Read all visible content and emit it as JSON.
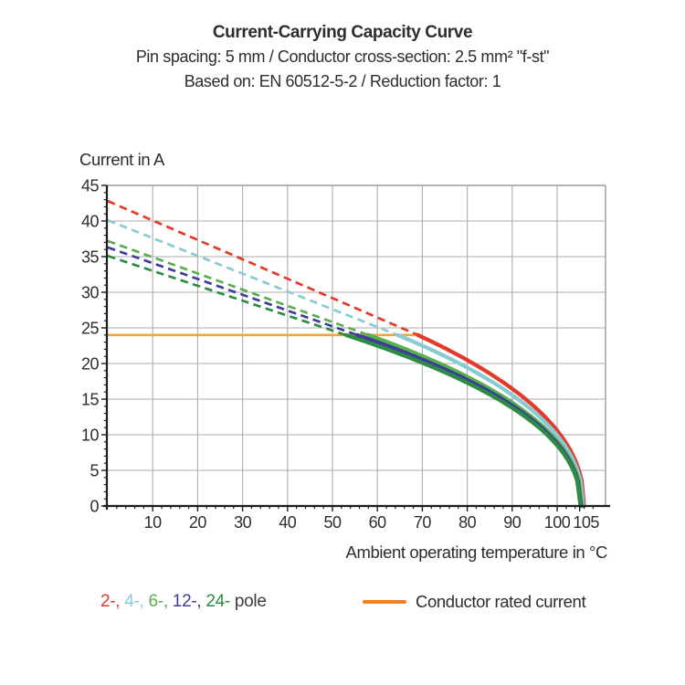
{
  "title": {
    "line1": "Current-Carrying Capacity Curve",
    "line2": "Pin spacing: 5 mm / Conductor cross-section: 2.5 mm² \"f-st\"",
    "line3": "Based on: EN 60512-5-2 / Reduction factor: 1"
  },
  "chart_data": {
    "type": "line",
    "title": "Current-Carrying Capacity Curve",
    "xlabel": "Ambient operating temperature in °C",
    "ylabel": "Current in A",
    "xlim": [
      0,
      110.5
    ],
    "ylim": [
      0,
      45
    ],
    "grid": "on",
    "x_major_ticks": [
      10,
      20,
      30,
      40,
      50,
      60,
      70,
      80,
      90,
      100,
      105
    ],
    "x_minor_step": 2,
    "y_major_ticks": [
      0,
      5,
      10,
      15,
      20,
      25,
      30,
      35,
      40,
      45
    ],
    "y_minor_step": 1,
    "rated_current": {
      "label": "Conductor rated current",
      "value_A": 24,
      "T_range": [
        0,
        69
      ],
      "color": "#F6A336"
    },
    "series": [
      {
        "name": "2-pole",
        "color": "#E5392B",
        "dashed_segment": {
          "T": [
            0,
            69
          ],
          "I": [
            42.8,
            24
          ]
        },
        "solid_segment": {
          "T_start": 69,
          "T_end": 106,
          "I_start": 24,
          "I_end": 0,
          "exponent": 0.45,
          "sample_T": [
            69,
            75,
            80,
            85,
            90,
            95,
            100,
            103,
            105,
            106
          ],
          "sample_I": [
            24,
            22.2,
            20.5,
            18.6,
            16.5,
            13.9,
            10.6,
            7.8,
            4.7,
            0
          ]
        }
      },
      {
        "name": "4-pole",
        "color": "#89CBD3",
        "dashed_segment": {
          "T": [
            0,
            64.5
          ],
          "I": [
            40.1,
            24
          ]
        },
        "solid_segment": {
          "T_start": 64.5,
          "T_end": 105.8,
          "I_start": 24,
          "I_end": 0,
          "exponent": 0.45,
          "sample_T": [
            64.5,
            70,
            80,
            90,
            100,
            105,
            105.8
          ],
          "sample_I": [
            24,
            22.5,
            19.4,
            15.6,
            9.9,
            4.1,
            0
          ]
        }
      },
      {
        "name": "6-pole",
        "color": "#56B14A",
        "dashed_segment": {
          "T": [
            0,
            58
          ],
          "I": [
            37.2,
            24
          ]
        },
        "solid_segment": {
          "T_start": 58,
          "T_end": 105.5,
          "I_start": 24,
          "I_end": 0,
          "exponent": 0.45,
          "sample_T": [
            58,
            70,
            80,
            90,
            100,
            105,
            105.5
          ],
          "sample_I": [
            24,
            21.1,
            18.1,
            14.5,
            9.1,
            3.1,
            0
          ]
        }
      },
      {
        "name": "12-pole",
        "color": "#3E3C9C",
        "dashed_segment": {
          "T": [
            0,
            55.5
          ],
          "I": [
            36.3,
            24
          ]
        },
        "solid_segment": {
          "T_start": 55.5,
          "T_end": 105.3,
          "I_start": 24,
          "I_end": 0,
          "exponent": 0.45,
          "sample_T": [
            55.5,
            70,
            80,
            90,
            100,
            105,
            105.3
          ],
          "sample_I": [
            24,
            20.6,
            17.7,
            14.1,
            8.8,
            2.4,
            0
          ]
        }
      },
      {
        "name": "24-pole",
        "color": "#2E8B42",
        "dashed_segment": {
          "T": [
            0,
            53
          ],
          "I": [
            35.1,
            24
          ]
        },
        "solid_segment": {
          "T_start": 53,
          "T_end": 105.2,
          "I_start": 24,
          "I_end": 0,
          "exponent": 0.45,
          "sample_T": [
            53,
            70,
            80,
            90,
            100,
            105,
            105.2
          ],
          "sample_I": [
            24,
            20.1,
            17.3,
            13.8,
            8.5,
            2.0,
            0
          ]
        }
      }
    ]
  },
  "legend": {
    "pole_items": [
      {
        "text": "2-",
        "color": "#E5392B"
      },
      {
        "text": "4-",
        "color": "#89CBD3"
      },
      {
        "text": "6-",
        "color": "#56B14A"
      },
      {
        "text": "12-",
        "color": "#3E3C9C"
      },
      {
        "text": "24-",
        "color": "#2E8B42"
      }
    ],
    "separator": ", ",
    "pole_suffix": " pole",
    "rated_current_label": "Conductor rated current",
    "rated_swatch_color": "#EF8222"
  },
  "colors": {
    "axis": "#1d1d1b",
    "grid": "#acacac",
    "frame": "#9b9b9b",
    "tick_label": "#2e2e2d"
  }
}
